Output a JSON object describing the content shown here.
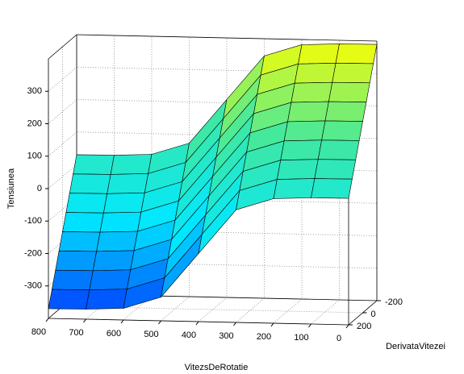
{
  "chart_data": {
    "type": "surface",
    "xlabel": "VitezsDeRotatie",
    "ylabel": "DerivataVitezei",
    "zlabel": "Tensiunea",
    "x": [
      0,
      100,
      200,
      300,
      400,
      500,
      600,
      700,
      800
    ],
    "y": [
      -200,
      -150,
      -100,
      -50,
      0,
      50,
      100,
      150,
      200
    ],
    "z": [
      [
        390,
        389,
        384,
        347,
        210,
        73,
        36,
        31,
        30
      ],
      [
        340,
        339,
        334,
        297,
        160,
        23,
        -14,
        -19,
        -20
      ],
      [
        290,
        289,
        284,
        247,
        110,
        -27,
        -64,
        -69,
        -70
      ],
      [
        240,
        239,
        234,
        197,
        60,
        -77,
        -114,
        -119,
        -120
      ],
      [
        190,
        189,
        184,
        147,
        10,
        -127,
        -164,
        -169,
        -170
      ],
      [
        140,
        139,
        134,
        97,
        -40,
        -177,
        -214,
        -219,
        -220
      ],
      [
        90,
        89,
        84,
        47,
        -90,
        -227,
        -264,
        -269,
        -270
      ],
      [
        40,
        39,
        34,
        -3,
        -140,
        -277,
        -314,
        -319,
        -320
      ],
      [
        -10,
        -11,
        -16,
        -53,
        -190,
        -327,
        -364,
        -369,
        -370
      ]
    ],
    "xlim": [
      0,
      800
    ],
    "xticks": [
      0,
      100,
      200,
      300,
      400,
      500,
      600,
      700,
      800
    ],
    "ylim": [
      -200,
      200
    ],
    "yticks": [
      -200,
      0,
      200
    ],
    "zlim": [
      -400,
      400
    ],
    "zticks": [
      -300,
      -200,
      -100,
      0,
      100,
      200,
      300
    ],
    "colormap": [
      "#0030ff",
      "#00e8ff",
      "#40e8a0",
      "#ffff00"
    ],
    "grid": true
  }
}
